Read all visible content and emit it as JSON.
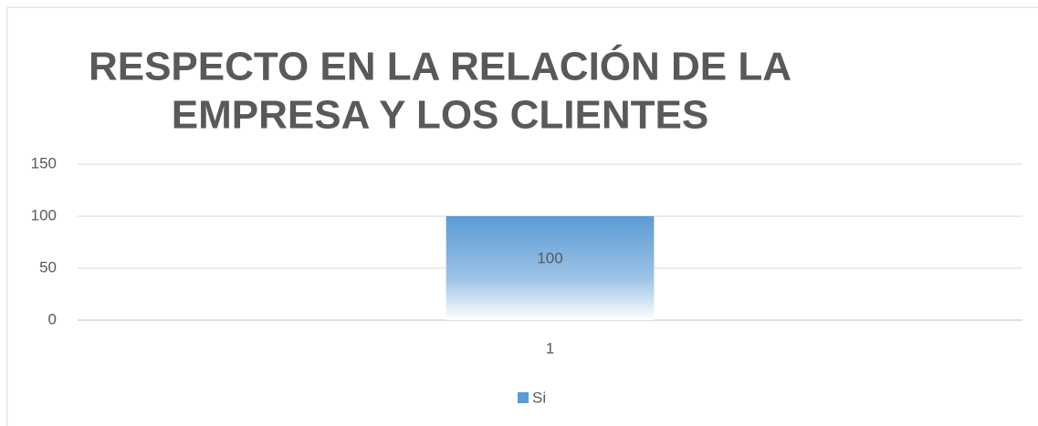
{
  "chart_data": {
    "type": "bar",
    "title": [
      "RESPECTO EN LA RELACIÓN DE LA",
      "EMPRESA Y LOS CLIENTES"
    ],
    "categories": [
      "1"
    ],
    "series": [
      {
        "name": "Si",
        "color": "#5b9bd5",
        "values": [
          100
        ]
      }
    ],
    "ylim": [
      0,
      150
    ],
    "yticks": [
      0,
      50,
      100,
      150
    ],
    "grid": true,
    "legend": "bottom"
  }
}
